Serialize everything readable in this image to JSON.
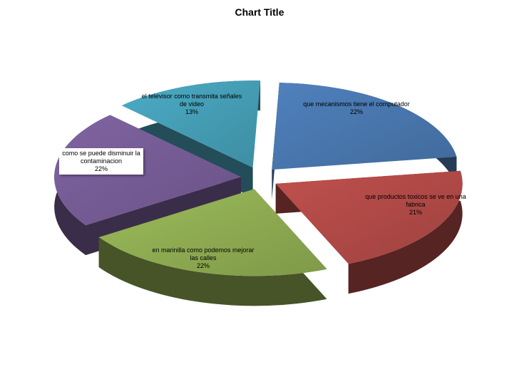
{
  "chart_data": {
    "type": "pie",
    "title": "Chart Title",
    "categories": [
      "que mecanismos tiene el computador",
      "que productos toxicos se ve en una fabrica",
      "en marinilla como podemos mejorar las calles",
      "como se puede disminuir la contaminacion",
      "el televisor como transmita señales de video"
    ],
    "values": [
      22,
      21,
      22,
      22,
      13
    ],
    "value_labels": [
      "22%",
      "21%",
      "22%",
      "22%",
      "13%"
    ],
    "colors": [
      "#4f81bd",
      "#c0504d",
      "#9bbb59",
      "#8064a2",
      "#4bacc6"
    ]
  }
}
